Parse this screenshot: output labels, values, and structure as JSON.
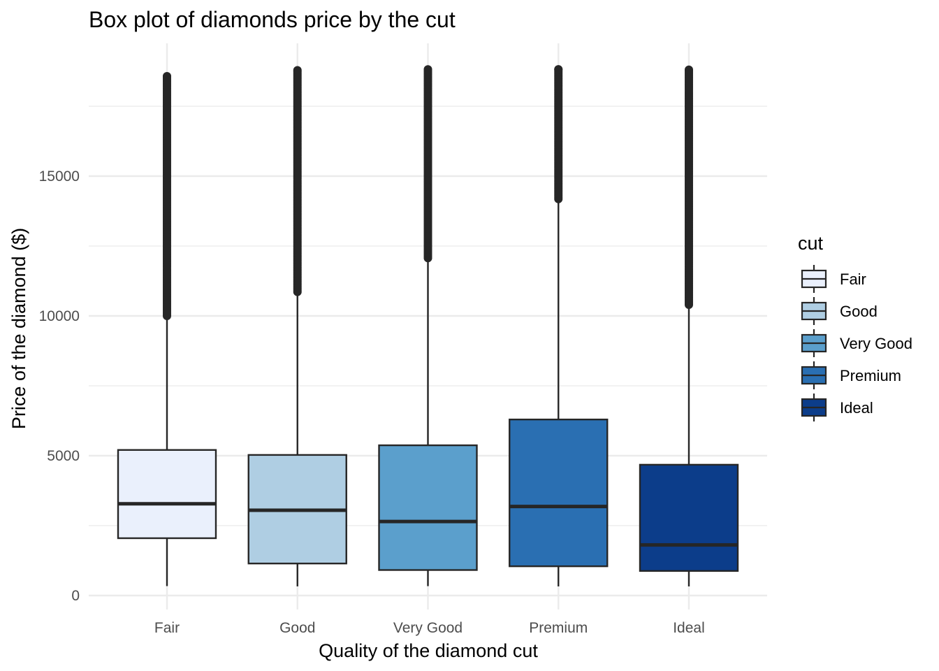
{
  "chart_data": {
    "type": "boxplot",
    "title": "Box plot of diamonds price by the cut",
    "xlabel": "Quality of the diamond cut",
    "ylabel": "Price of the diamond ($)",
    "ylim": [
      -500,
      19300
    ],
    "y_ticks": [
      0,
      5000,
      10000,
      15000
    ],
    "categories": [
      "Fair",
      "Good",
      "Very Good",
      "Premium",
      "Ideal"
    ],
    "fills": [
      "#eaf0fc",
      "#afcee3",
      "#5b9fcc",
      "#2a6fb2",
      "#0c3d8a"
    ],
    "boxes": [
      {
        "name": "Fair",
        "whisker_low": 337,
        "q1": 2050,
        "median": 3282,
        "q3": 5206,
        "whisker_high": 9995,
        "outlier_min": 10000,
        "outlier_max": 18574
      },
      {
        "name": "Good",
        "whisker_low": 327,
        "q1": 1145,
        "median": 3050,
        "q3": 5028,
        "whisker_high": 10849,
        "outlier_min": 10860,
        "outlier_max": 18788
      },
      {
        "name": "Very Good",
        "whisker_low": 336,
        "q1": 912,
        "median": 2648,
        "q3": 5373,
        "whisker_high": 12065,
        "outlier_min": 12070,
        "outlier_max": 18818
      },
      {
        "name": "Premium",
        "whisker_low": 326,
        "q1": 1046,
        "median": 3185,
        "q3": 6296,
        "whisker_high": 14171,
        "outlier_min": 14180,
        "outlier_max": 18823
      },
      {
        "name": "Ideal",
        "whisker_low": 326,
        "q1": 878,
        "median": 1810,
        "q3": 4678,
        "whisker_high": 10395,
        "outlier_min": 10400,
        "outlier_max": 18806
      }
    ],
    "legend": {
      "title": "cut",
      "position": "right",
      "items": [
        "Fair",
        "Good",
        "Very Good",
        "Premium",
        "Ideal"
      ]
    },
    "grid": true,
    "theme": "minimal"
  }
}
